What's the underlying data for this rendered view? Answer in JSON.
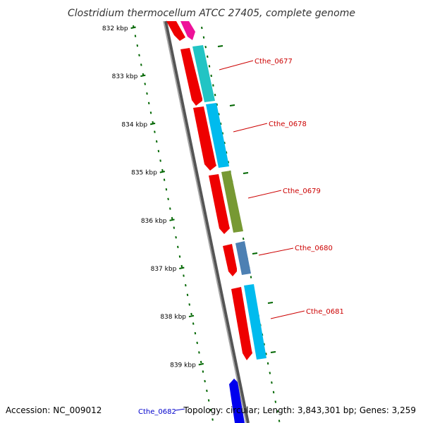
{
  "title": "Clostridium thermocellum ATCC 27405, complete genome",
  "accession_label": "Accession: NC_009012",
  "topology_label": "Topology: circular; Length: 3,843,301 bp; Genes: 3,259",
  "colors": {
    "backbone": "#808080",
    "tick": "#006600",
    "label_red": "#cc0000",
    "label_blue": "#0000cc",
    "gene_red": "#ee0000",
    "gene_pink": "#ee1199",
    "gene_teal": "#22c4c4",
    "gene_sky": "#00bbee",
    "gene_olive": "#779933",
    "gene_steel": "#4d80b3",
    "gene_blue": "#0000ee"
  },
  "ticks": [
    {
      "label": "832 kbp"
    },
    {
      "label": "833 kbp"
    },
    {
      "label": "834 kbp"
    },
    {
      "label": "835 kbp"
    },
    {
      "label": "836 kbp"
    },
    {
      "label": "837 kbp"
    },
    {
      "label": "838 kbp"
    },
    {
      "label": "839 kbp"
    }
  ],
  "genes": [
    {
      "name": "Cthe_0677",
      "label_color": "#cc0000"
    },
    {
      "name": "Cthe_0678",
      "label_color": "#cc0000"
    },
    {
      "name": "Cthe_0679",
      "label_color": "#cc0000"
    },
    {
      "name": "Cthe_0680",
      "label_color": "#cc0000"
    },
    {
      "name": "Cthe_0681",
      "label_color": "#cc0000"
    },
    {
      "name": "Cthe_0682",
      "label_color": "#0000cc"
    }
  ]
}
